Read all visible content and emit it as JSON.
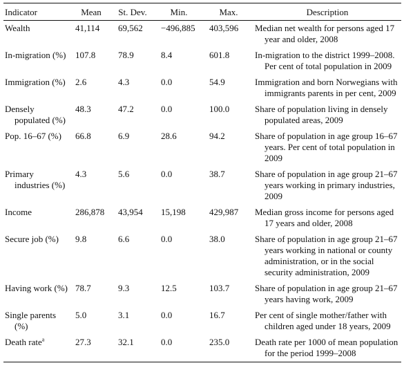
{
  "table": {
    "headers": {
      "indicator": "Indicator",
      "mean": "Mean",
      "sd": "St. Dev.",
      "min": "Min.",
      "max": "Max.",
      "description": "Description"
    },
    "rows": [
      {
        "indicator": "Wealth",
        "footnote": "",
        "mean": "41,114",
        "sd": "69,562",
        "min": "−496,885",
        "max": "403,596",
        "description": "Median net wealth for persons aged 17 year and older, 2008"
      },
      {
        "indicator": "In-migration (%)",
        "footnote": "",
        "mean": "107.8",
        "sd": "78.9",
        "min": "8.4",
        "max": "601.8",
        "description": "In-migration to the district 1999–2008. Per cent of total population in 2009"
      },
      {
        "indicator": "Immigration (%)",
        "footnote": "",
        "mean": "2.6",
        "sd": "4.3",
        "min": "0.0",
        "max": "54.9",
        "description": "Immigration and born Norwegians with immigrants parents in per cent, 2009"
      },
      {
        "indicator": "Densely populated (%)",
        "footnote": "",
        "mean": "48.3",
        "sd": "47.2",
        "min": "0.0",
        "max": "100.0",
        "description": "Share of population living in densely populated areas, 2009"
      },
      {
        "indicator": "Pop. 16–67 (%)",
        "footnote": "",
        "mean": "66.8",
        "sd": "6.9",
        "min": "28.6",
        "max": "94.2",
        "description": "Share of population in age group 16–67 years. Per cent of total population in 2009"
      },
      {
        "indicator": "Primary industries (%)",
        "footnote": "",
        "mean": "4.3",
        "sd": "5.6",
        "min": "0.0",
        "max": "38.7",
        "description": "Share of population in age group 21–67 years working in primary industries, 2009"
      },
      {
        "indicator": "Income",
        "footnote": "",
        "mean": "286,878",
        "sd": "43,954",
        "min": "15,198",
        "max": "429,987",
        "description": "Median gross income for persons aged 17 years and older, 2008"
      },
      {
        "indicator": "Secure job (%)",
        "footnote": "",
        "mean": "9.8",
        "sd": "6.6",
        "min": "0.0",
        "max": "38.0",
        "description": "Share of population in age group 21–67 years working in national or county administration, or in the social security administration, 2009"
      },
      {
        "indicator": "Having work (%)",
        "footnote": "",
        "mean": "78.7",
        "sd": "9.3",
        "min": "12.5",
        "max": "103.7",
        "description": "Share of population in age group 21–67 years having work, 2009"
      },
      {
        "indicator": "Single parents (%)",
        "footnote": "",
        "mean": "5.0",
        "sd": "3.1",
        "min": "0.0",
        "max": "16.7",
        "description": "Per cent of single mother/father with children aged under 18 years, 2009"
      },
      {
        "indicator": "Death rate",
        "footnote": "a",
        "mean": "27.3",
        "sd": "32.1",
        "min": "0.0",
        "max": "235.0",
        "description": "Death rate per 1000 of mean population for the period 1999–2008"
      }
    ]
  }
}
